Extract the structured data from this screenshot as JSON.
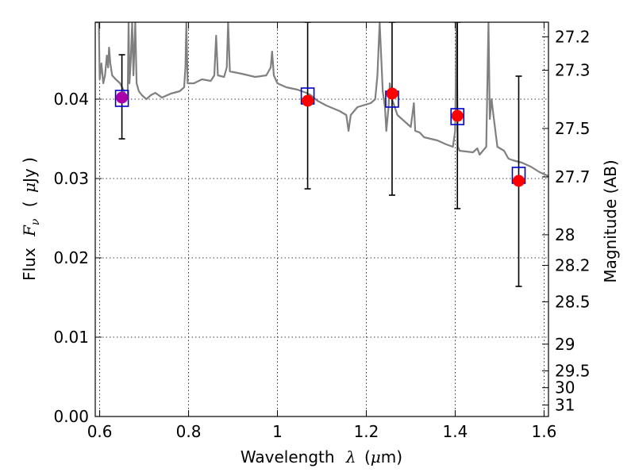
{
  "chart_data": {
    "type": "scatter",
    "title": "",
    "xlabel": "Wavelength",
    "xlabel_math": "λ",
    "xlabel_unit_pre": "(",
    "xlabel_unit_mu": "μ",
    "xlabel_unit_post": "m)",
    "ylabel": "Flux",
    "ylabel_math_base": "F",
    "ylabel_math_sub": "ν",
    "ylabel_unit_pre": "(",
    "ylabel_unit_mu": "μ",
    "ylabel_unit_post": "Jy )",
    "y2label": "Magnitude (AB)",
    "xlim": [
      0.59,
      1.61
    ],
    "ylim": [
      0.0,
      0.0497
    ],
    "grid": true,
    "x_ticks": [
      {
        "value": 0.6,
        "label": "0.6"
      },
      {
        "value": 0.8,
        "label": "0.8"
      },
      {
        "value": 1.0,
        "label": "1"
      },
      {
        "value": 1.2,
        "label": "1.2"
      },
      {
        "value": 1.4,
        "label": "1.4"
      },
      {
        "value": 1.6,
        "label": "1.6"
      }
    ],
    "y_ticks": [
      {
        "value": 0.0,
        "label": "0.00"
      },
      {
        "value": 0.01,
        "label": "0.01"
      },
      {
        "value": 0.02,
        "label": "0.02"
      },
      {
        "value": 0.03,
        "label": "0.03"
      },
      {
        "value": 0.04,
        "label": "0.04"
      }
    ],
    "y2_ticks": [
      {
        "mag": 27.2,
        "label": "27.2"
      },
      {
        "mag": 27.3,
        "label": "27.3"
      },
      {
        "mag": 27.5,
        "label": "27.5"
      },
      {
        "mag": 27.7,
        "label": "27.7"
      },
      {
        "mag": 28.0,
        "label": "28"
      },
      {
        "mag": 28.2,
        "label": "28.2"
      },
      {
        "mag": 28.5,
        "label": "28.5"
      },
      {
        "mag": 29.0,
        "label": "29"
      },
      {
        "mag": 29.5,
        "label": "29.5"
      },
      {
        "mag": 30.0,
        "label": "30"
      },
      {
        "mag": 31.0,
        "label": "31"
      }
    ],
    "series": [
      {
        "kind": "observed",
        "marker": "circle",
        "color": "#ff0000",
        "points": [
          {
            "x": 0.65,
            "y": 0.0402,
            "yerr_low": 0.035,
            "yerr_high": 0.0456,
            "color": "#aa00aa"
          },
          {
            "x": 1.068,
            "y": 0.0398,
            "yerr_low": 0.0287,
            "yerr_high": 0.0497
          },
          {
            "x": 1.258,
            "y": 0.0407,
            "yerr_low": 0.0279,
            "yerr_high": 0.0497
          },
          {
            "x": 1.405,
            "y": 0.0379,
            "yerr_low": 0.0262,
            "yerr_high": 0.0497
          },
          {
            "x": 1.543,
            "y": 0.0297,
            "yerr_low": 0.0164,
            "yerr_high": 0.0429
          }
        ]
      },
      {
        "kind": "model-band",
        "marker": "square",
        "color": "#0000cc",
        "points": [
          {
            "x": 0.65,
            "y": 0.0401
          },
          {
            "x": 1.068,
            "y": 0.0404
          },
          {
            "x": 1.258,
            "y": 0.04
          },
          {
            "x": 1.405,
            "y": 0.0378
          },
          {
            "x": 1.543,
            "y": 0.0304
          }
        ]
      },
      {
        "kind": "model-spectrum",
        "marker": "line",
        "color": "#808080",
        "points": [
          [
            0.59,
            0.0497
          ],
          [
            0.598,
            0.0497
          ],
          [
            0.6,
            0.0425
          ],
          [
            0.604,
            0.0445
          ],
          [
            0.608,
            0.042
          ],
          [
            0.612,
            0.043
          ],
          [
            0.616,
            0.0455
          ],
          [
            0.619,
            0.044
          ],
          [
            0.621,
            0.0465
          ],
          [
            0.624,
            0.0445
          ],
          [
            0.628,
            0.043
          ],
          [
            0.636,
            0.0425
          ],
          [
            0.646,
            0.042
          ],
          [
            0.655,
            0.041
          ],
          [
            0.66,
            0.04
          ],
          [
            0.663,
            0.0405
          ],
          [
            0.665,
            0.0497
          ],
          [
            0.667,
            0.042
          ],
          [
            0.67,
            0.045
          ],
          [
            0.673,
            0.0497
          ],
          [
            0.676,
            0.043
          ],
          [
            0.68,
            0.0497
          ],
          [
            0.683,
            0.042
          ],
          [
            0.688,
            0.041
          ],
          [
            0.695,
            0.0405
          ],
          [
            0.705,
            0.04
          ],
          [
            0.715,
            0.0405
          ],
          [
            0.725,
            0.0408
          ],
          [
            0.74,
            0.0402
          ],
          [
            0.76,
            0.0407
          ],
          [
            0.78,
            0.041
          ],
          [
            0.79,
            0.0415
          ],
          [
            0.793,
            0.044
          ],
          [
            0.795,
            0.0497
          ],
          [
            0.798,
            0.042
          ],
          [
            0.812,
            0.042
          ],
          [
            0.83,
            0.0425
          ],
          [
            0.85,
            0.0423
          ],
          [
            0.858,
            0.043
          ],
          [
            0.862,
            0.048
          ],
          [
            0.866,
            0.043
          ],
          [
            0.88,
            0.0428
          ],
          [
            0.886,
            0.044
          ],
          [
            0.889,
            0.0497
          ],
          [
            0.893,
            0.0435
          ],
          [
            0.92,
            0.0432
          ],
          [
            0.95,
            0.0428
          ],
          [
            0.975,
            0.043
          ],
          [
            0.985,
            0.044
          ],
          [
            0.988,
            0.046
          ],
          [
            0.992,
            0.043
          ],
          [
            1.0,
            0.042
          ],
          [
            1.02,
            0.0415
          ],
          [
            1.045,
            0.0412
          ],
          [
            1.065,
            0.0408
          ],
          [
            1.075,
            0.0405
          ],
          [
            1.09,
            0.0398
          ],
          [
            1.11,
            0.0392
          ],
          [
            1.14,
            0.0385
          ],
          [
            1.155,
            0.038
          ],
          [
            1.16,
            0.036
          ],
          [
            1.165,
            0.038
          ],
          [
            1.18,
            0.039
          ],
          [
            1.21,
            0.0395
          ],
          [
            1.22,
            0.04
          ],
          [
            1.225,
            0.043
          ],
          [
            1.23,
            0.0497
          ],
          [
            1.237,
            0.041
          ],
          [
            1.242,
            0.039
          ],
          [
            1.245,
            0.036
          ],
          [
            1.25,
            0.039
          ],
          [
            1.253,
            0.042
          ],
          [
            1.258,
            0.04
          ],
          [
            1.27,
            0.038
          ],
          [
            1.28,
            0.0375
          ],
          [
            1.29,
            0.037
          ],
          [
            1.3,
            0.0365
          ],
          [
            1.307,
            0.0395
          ],
          [
            1.31,
            0.036
          ],
          [
            1.32,
            0.0358
          ],
          [
            1.33,
            0.0352
          ],
          [
            1.345,
            0.035
          ],
          [
            1.36,
            0.0348
          ],
          [
            1.38,
            0.0343
          ],
          [
            1.395,
            0.034
          ],
          [
            1.4,
            0.036
          ],
          [
            1.403,
            0.0497
          ],
          [
            1.406,
            0.034
          ],
          [
            1.41,
            0.0335
          ],
          [
            1.44,
            0.0333
          ],
          [
            1.45,
            0.0338
          ],
          [
            1.455,
            0.033
          ],
          [
            1.47,
            0.034
          ],
          [
            1.475,
            0.0497
          ],
          [
            1.478,
            0.0375
          ],
          [
            1.482,
            0.04
          ],
          [
            1.486,
            0.038
          ],
          [
            1.495,
            0.034
          ],
          [
            1.51,
            0.0335
          ],
          [
            1.52,
            0.0325
          ],
          [
            1.53,
            0.0323
          ],
          [
            1.55,
            0.032
          ],
          [
            1.57,
            0.0315
          ],
          [
            1.59,
            0.0308
          ],
          [
            1.61,
            0.0303
          ]
        ]
      }
    ]
  }
}
